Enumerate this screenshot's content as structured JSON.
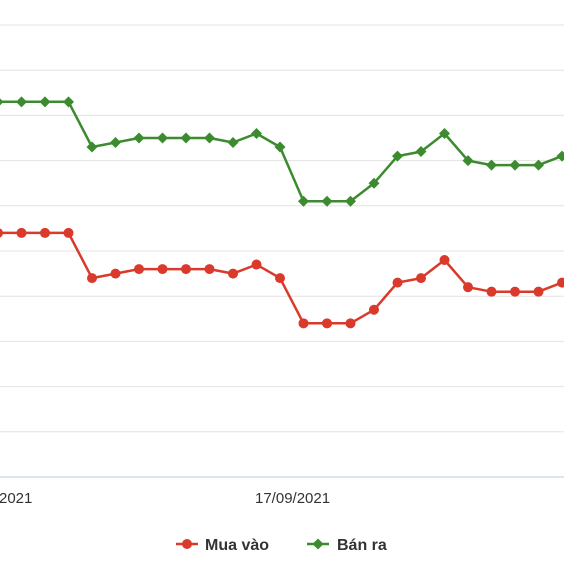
{
  "chart_data": {
    "type": "line",
    "title": "",
    "xlabel": "",
    "ylabel": "",
    "x_tick_labels": [
      "2021",
      "17/09/2021"
    ],
    "legend_position": "bottom-center",
    "grid": true,
    "ylim": [
      0,
      10
    ],
    "series": [
      {
        "name": "Mua vào",
        "color": "#d93a2b",
        "marker": "circle",
        "values": [
          5.4,
          5.4,
          5.4,
          5.4,
          4.4,
          4.5,
          4.6,
          4.6,
          4.6,
          4.6,
          4.5,
          4.7,
          4.4,
          3.4,
          3.4,
          3.4,
          3.7,
          4.3,
          4.4,
          4.8,
          4.2,
          4.1,
          4.1,
          4.1,
          4.3
        ]
      },
      {
        "name": "Bán ra",
        "color": "#3d8b2f",
        "marker": "diamond",
        "values": [
          8.3,
          8.3,
          8.3,
          8.3,
          7.3,
          7.4,
          7.5,
          7.5,
          7.5,
          7.5,
          7.4,
          7.6,
          7.3,
          6.1,
          6.1,
          6.1,
          6.5,
          7.1,
          7.2,
          7.6,
          7.0,
          6.9,
          6.9,
          6.9,
          7.1
        ]
      }
    ]
  }
}
